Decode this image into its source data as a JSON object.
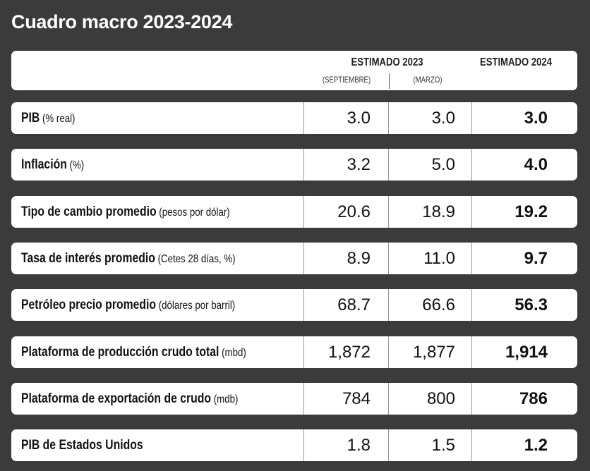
{
  "title": "Cuadro macro 2023-2024",
  "table": {
    "header": {
      "group": "ESTIMADO 2023",
      "sub": [
        "(SEPTIEMBRE)",
        "(MARZO)"
      ],
      "last": "ESTIMADO 2024"
    },
    "rows": [
      {
        "label": "PIB",
        "unit": "(% real)",
        "values": [
          "3.0",
          "3.0",
          "3.0"
        ]
      },
      {
        "label": "Inflación",
        "unit": "(%)",
        "values": [
          "3.2",
          "5.0",
          "4.0"
        ]
      },
      {
        "label": "Tipo de cambio promedio",
        "unit": "(pesos por dólar)",
        "values": [
          "20.6",
          "18.9",
          "19.2"
        ]
      },
      {
        "label": "Tasa de interés promedio",
        "unit": "(Cetes 28 días, %)",
        "values": [
          "8.9",
          "11.0",
          "9.7"
        ]
      },
      {
        "label": "Petróleo precio promedio",
        "unit": "(dólares por barril)",
        "values": [
          "68.7",
          "66.6",
          "56.3"
        ]
      },
      {
        "label": "Plataforma de producción crudo total",
        "unit": "(mbd)",
        "values": [
          "1,872",
          "1,877",
          "1,914"
        ]
      },
      {
        "label": "Plataforma de exportación de crudo",
        "unit": "(mdb)",
        "values": [
          "784",
          "800",
          "786"
        ]
      },
      {
        "label": "PIB de Estados Unidos",
        "unit": "",
        "values": [
          "1.8",
          "1.5",
          "1.2"
        ]
      }
    ]
  }
}
